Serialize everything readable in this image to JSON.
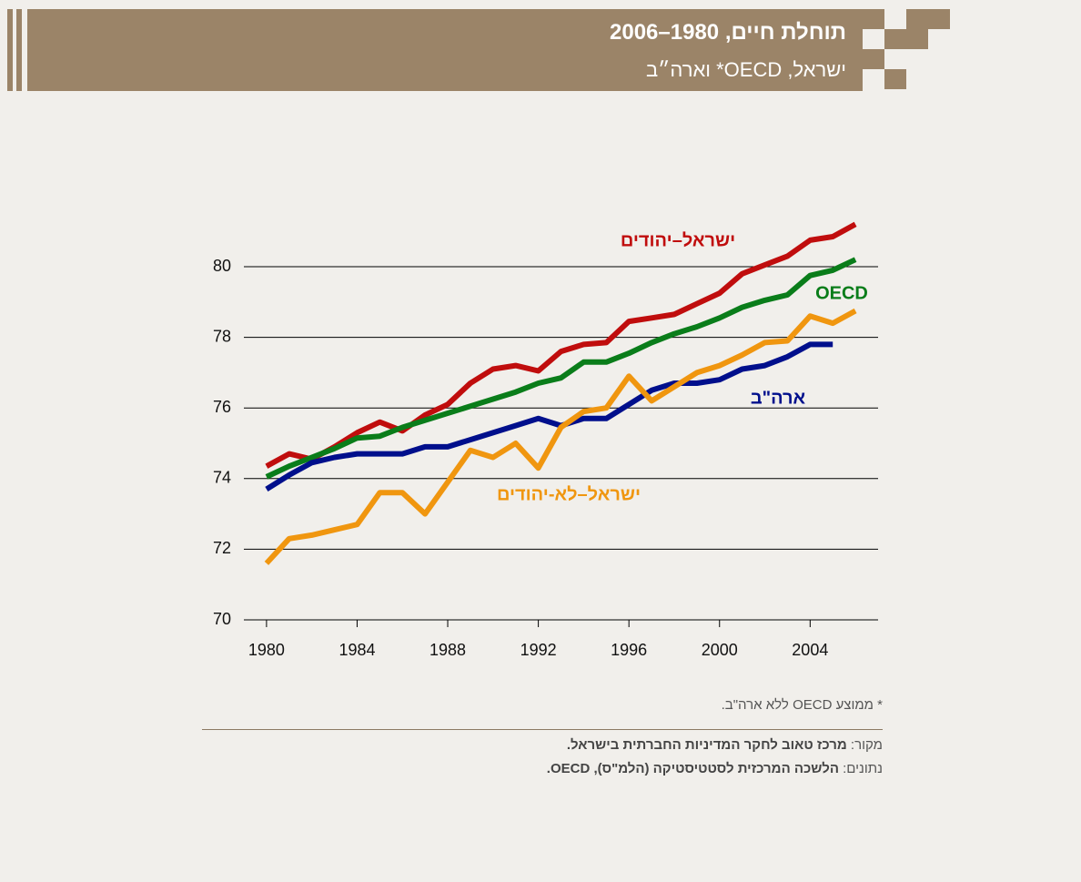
{
  "chart_data": {
    "type": "line",
    "title": "תוחלת חיים, 1980–2006",
    "subtitle": "ישראל, OECD* וארה״ב",
    "x": [
      1980,
      1981,
      1982,
      1983,
      1984,
      1985,
      1986,
      1987,
      1988,
      1989,
      1990,
      1991,
      1992,
      1993,
      1994,
      1995,
      1996,
      1997,
      1998,
      1999,
      2000,
      2001,
      2002,
      2003,
      2004,
      2005,
      2006
    ],
    "series": [
      {
        "name": "ישראל–יהודים",
        "color": "#c00d0d",
        "values": [
          74.35,
          74.7,
          74.55,
          74.9,
          75.3,
          75.6,
          75.35,
          75.8,
          76.1,
          76.7,
          77.1,
          77.2,
          77.05,
          77.6,
          77.8,
          77.85,
          78.45,
          78.55,
          78.65,
          78.95,
          79.25,
          79.8,
          80.05,
          80.3,
          80.75,
          80.85,
          81.2
        ]
      },
      {
        "name": "OECD",
        "color": "#0a7d1a",
        "values": [
          74.05,
          74.35,
          74.6,
          74.85,
          75.15,
          75.2,
          75.45,
          75.65,
          75.85,
          76.05,
          76.25,
          76.45,
          76.7,
          76.85,
          77.3,
          77.3,
          77.55,
          77.85,
          78.1,
          78.3,
          78.55,
          78.85,
          79.05,
          79.2,
          79.75,
          79.9,
          80.2
        ]
      },
      {
        "name": "ארה\"ב",
        "color": "#000f8c",
        "values": [
          73.7,
          74.1,
          74.45,
          74.6,
          74.7,
          74.7,
          74.7,
          74.9,
          74.9,
          75.1,
          75.3,
          75.5,
          75.7,
          75.5,
          75.7,
          75.7,
          76.1,
          76.5,
          76.7,
          76.7,
          76.8,
          77.1,
          77.2,
          77.45,
          77.8,
          77.8,
          null
        ]
      },
      {
        "name": "ישראל–לא-יהודים",
        "color": "#f0960f",
        "values": [
          71.6,
          72.3,
          72.4,
          72.55,
          72.7,
          73.6,
          73.6,
          73.0,
          73.9,
          74.8,
          74.6,
          75.0,
          74.3,
          75.45,
          75.9,
          76.0,
          76.9,
          76.2,
          76.6,
          77.0,
          77.2,
          77.5,
          77.85,
          77.9,
          78.6,
          78.4,
          78.75
        ]
      }
    ],
    "xlim": [
      1979,
      2007
    ],
    "xticks": [
      1980,
      1984,
      1988,
      1992,
      1996,
      2000,
      2004
    ],
    "ylim": [
      70,
      81.5
    ],
    "yticks": [
      70,
      72,
      74,
      76,
      78,
      80
    ],
    "grid": true,
    "footnote": "* ממוצע OECD ללא ארה\"ב.",
    "source_label": "מקור:",
    "source_text": "מרכז טאוב לחקר המדיניות החברתית בישראל.",
    "data_label": "נתונים:",
    "data_text": "הלשכה המרכזית לסטטיסטיקה (הלמ\"ס), OECD."
  }
}
